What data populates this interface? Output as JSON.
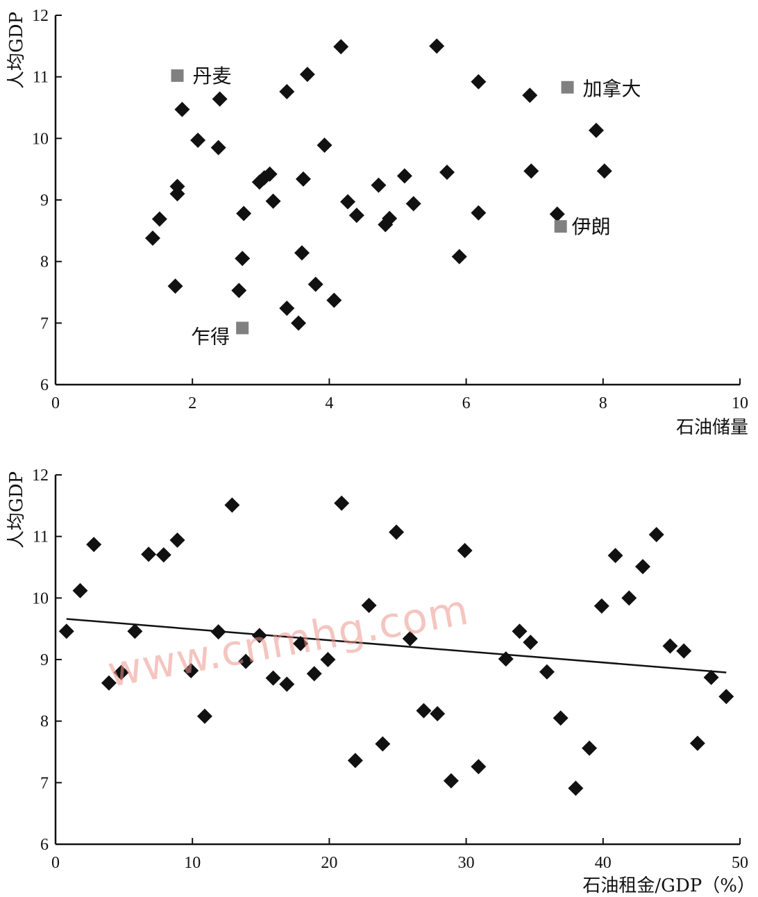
{
  "chart_data": [
    {
      "type": "scatter",
      "ylabel": "人均GDP",
      "xlabel": "石油储量",
      "xlim": [
        0,
        10
      ],
      "ylim": [
        6,
        12
      ],
      "xticks": [
        "0",
        "2",
        "4",
        "6",
        "8",
        "10"
      ],
      "yticks": [
        "6",
        "7",
        "8",
        "9",
        "10",
        "11",
        "12"
      ],
      "series": [
        {
          "marker": "diamond",
          "color": "#111111",
          "points": [
            [
              1.42,
              8.38
            ],
            [
              1.52,
              8.69
            ],
            [
              1.75,
              7.6
            ],
            [
              1.78,
              9.1
            ],
            [
              1.78,
              9.22
            ],
            [
              1.85,
              10.47
            ],
            [
              2.08,
              9.97
            ],
            [
              2.38,
              9.85
            ],
            [
              2.4,
              10.64
            ],
            [
              2.68,
              7.53
            ],
            [
              2.73,
              8.05
            ],
            [
              2.75,
              8.78
            ],
            [
              2.98,
              9.29
            ],
            [
              3.05,
              9.36
            ],
            [
              3.13,
              9.42
            ],
            [
              3.18,
              8.98
            ],
            [
              3.38,
              10.76
            ],
            [
              3.38,
              7.24
            ],
            [
              3.55,
              7.0
            ],
            [
              3.6,
              8.14
            ],
            [
              3.62,
              9.34
            ],
            [
              3.68,
              11.04
            ],
            [
              3.8,
              7.63
            ],
            [
              3.93,
              9.89
            ],
            [
              4.07,
              7.37
            ],
            [
              4.17,
              11.49
            ],
            [
              4.27,
              8.97
            ],
            [
              4.4,
              8.75
            ],
            [
              4.72,
              9.24
            ],
            [
              4.82,
              8.6
            ],
            [
              4.88,
              8.7
            ],
            [
              5.1,
              9.39
            ],
            [
              5.23,
              8.94
            ],
            [
              5.57,
              11.5
            ],
            [
              5.72,
              9.45
            ],
            [
              5.9,
              8.08
            ],
            [
              6.18,
              10.92
            ],
            [
              6.18,
              8.79
            ],
            [
              6.93,
              10.7
            ],
            [
              6.95,
              9.47
            ],
            [
              7.33,
              8.77
            ],
            [
              7.9,
              10.13
            ],
            [
              8.02,
              9.47
            ]
          ]
        },
        {
          "marker": "square",
          "color": "#808080",
          "points": [
            [
              1.78,
              11.02
            ],
            [
              2.73,
              6.92
            ],
            [
              7.48,
              10.83
            ],
            [
              7.38,
              8.57
            ]
          ]
        }
      ],
      "annotations": [
        {
          "text": "丹麦",
          "x": 1.78,
          "y": 11.02
        },
        {
          "text": "乍得",
          "x": 2.73,
          "y": 6.92
        },
        {
          "text": "加拿大",
          "x": 7.48,
          "y": 10.83
        },
        {
          "text": "伊朗",
          "x": 7.38,
          "y": 8.57
        }
      ]
    },
    {
      "type": "scatter",
      "ylabel": "人均GDP",
      "xlabel": "石油租金/GDP（%）",
      "xlim": [
        0,
        50
      ],
      "ylim": [
        6,
        12
      ],
      "xticks": [
        "0",
        "10",
        "20",
        "30",
        "40",
        "50"
      ],
      "yticks": [
        "6",
        "7",
        "8",
        "9",
        "10",
        "11",
        "12"
      ],
      "series": [
        {
          "marker": "diamond",
          "color": "#111111",
          "points": [
            [
              0.8,
              9.46
            ],
            [
              1.8,
              10.12
            ],
            [
              2.8,
              10.87
            ],
            [
              3.9,
              8.62
            ],
            [
              4.8,
              8.79
            ],
            [
              5.8,
              9.46
            ],
            [
              6.8,
              10.71
            ],
            [
              7.9,
              10.7
            ],
            [
              8.9,
              10.94
            ],
            [
              9.9,
              8.82
            ],
            [
              10.9,
              8.08
            ],
            [
              11.9,
              9.45
            ],
            [
              12.9,
              11.51
            ],
            [
              13.9,
              8.97
            ],
            [
              14.9,
              9.39
            ],
            [
              15.9,
              8.7
            ],
            [
              16.9,
              8.6
            ],
            [
              17.9,
              9.26
            ],
            [
              18.9,
              8.77
            ],
            [
              19.9,
              9.0
            ],
            [
              20.9,
              11.54
            ],
            [
              21.9,
              7.36
            ],
            [
              22.9,
              9.88
            ],
            [
              23.9,
              7.63
            ],
            [
              24.9,
              11.07
            ],
            [
              25.9,
              9.34
            ],
            [
              26.9,
              8.17
            ],
            [
              27.9,
              8.12
            ],
            [
              28.9,
              7.03
            ],
            [
              29.9,
              10.77
            ],
            [
              30.9,
              7.26
            ],
            [
              32.9,
              9.01
            ],
            [
              33.9,
              9.46
            ],
            [
              34.7,
              9.28
            ],
            [
              35.9,
              8.8
            ],
            [
              36.9,
              8.05
            ],
            [
              38.0,
              6.91
            ],
            [
              39.0,
              7.56
            ],
            [
              39.9,
              9.87
            ],
            [
              40.9,
              10.69
            ],
            [
              41.9,
              10.0
            ],
            [
              42.9,
              10.51
            ],
            [
              43.9,
              11.03
            ],
            [
              44.9,
              9.22
            ],
            [
              45.9,
              9.14
            ],
            [
              46.9,
              7.64
            ],
            [
              47.9,
              8.71
            ],
            [
              49.0,
              8.4
            ]
          ]
        }
      ],
      "trendline": {
        "x": [
          0.8,
          49.0
        ],
        "y": [
          9.66,
          8.79
        ]
      }
    }
  ],
  "watermark": "www.cnmhg.com"
}
